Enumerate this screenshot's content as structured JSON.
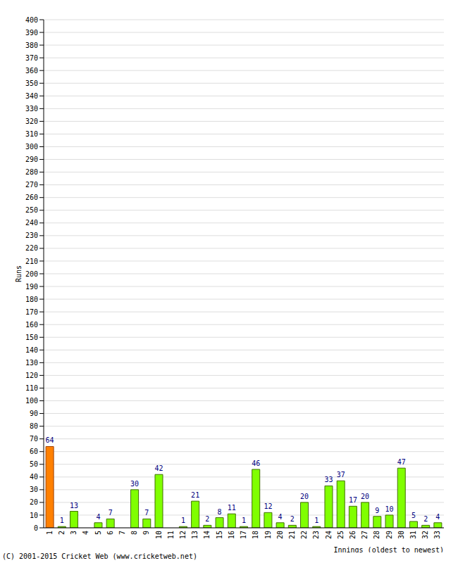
{
  "chart_data": {
    "type": "bar",
    "categories": [
      "1",
      "2",
      "3",
      "4",
      "5",
      "6",
      "7",
      "8",
      "9",
      "10",
      "11",
      "12",
      "13",
      "14",
      "15",
      "16",
      "17",
      "18",
      "19",
      "20",
      "21",
      "22",
      "23",
      "24",
      "25",
      "26",
      "27",
      "28",
      "29",
      "30",
      "31",
      "32",
      "33"
    ],
    "values": [
      64,
      1,
      13,
      0,
      4,
      7,
      0,
      30,
      7,
      42,
      0,
      1,
      21,
      2,
      8,
      11,
      1,
      46,
      12,
      4,
      2,
      20,
      1,
      33,
      37,
      17,
      20,
      9,
      10,
      47,
      5,
      2,
      4
    ],
    "colors": [
      "#ff8000",
      "#80ff00",
      "#80ff00",
      "#80ff00",
      "#80ff00",
      "#80ff00",
      "#80ff00",
      "#80ff00",
      "#80ff00",
      "#80ff00",
      "#80ff00",
      "#80ff00",
      "#80ff00",
      "#80ff00",
      "#80ff00",
      "#80ff00",
      "#80ff00",
      "#80ff00",
      "#80ff00",
      "#80ff00",
      "#80ff00",
      "#80ff00",
      "#80ff00",
      "#80ff00",
      "#80ff00",
      "#80ff00",
      "#80ff00",
      "#80ff00",
      "#80ff00",
      "#80ff00",
      "#80ff00",
      "#80ff00",
      "#80ff00"
    ],
    "x_label": "Innings (oldest to newest)",
    "y_label": "Runs",
    "annotations": [
      "(C) 2001-2015 Cricket Web (www.cricketweb.net)"
    ],
    "ylim": [
      0,
      400
    ],
    "yticks": [
      0,
      10,
      20,
      30,
      40,
      50,
      60,
      70,
      80,
      90,
      100,
      110,
      120,
      130,
      140,
      150,
      160,
      170,
      180,
      190,
      200,
      210,
      220,
      230,
      240,
      250,
      260,
      270,
      280,
      290,
      300,
      310,
      320,
      330,
      340,
      350,
      360,
      370,
      380,
      390,
      400
    ],
    "grid": true,
    "data_labels": true
  }
}
